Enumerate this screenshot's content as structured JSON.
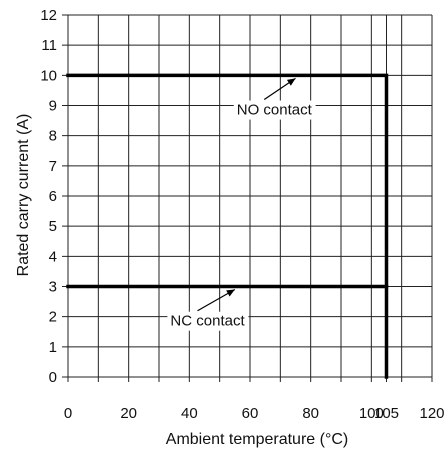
{
  "chart_data": {
    "type": "line",
    "title": "",
    "xlabel": "Ambient temperature (°C)",
    "ylabel": "Rated carry current (A)",
    "xlim": [
      0,
      120
    ],
    "ylim": [
      0,
      12
    ],
    "x_ticks": [
      0,
      20,
      40,
      60,
      80,
      100,
      105,
      120
    ],
    "y_ticks": [
      0,
      1,
      2,
      3,
      4,
      5,
      6,
      7,
      8,
      9,
      10,
      11,
      12
    ],
    "x_grid": [
      0,
      10,
      20,
      30,
      40,
      50,
      60,
      70,
      80,
      90,
      100,
      105,
      110,
      120
    ],
    "y_grid": [
      0,
      1,
      2,
      3,
      4,
      5,
      6,
      7,
      8,
      9,
      10,
      11,
      12
    ],
    "grid": true,
    "series": [
      {
        "name": "NO contact",
        "x": [
          0,
          105,
          105
        ],
        "y": [
          10,
          10,
          0
        ]
      },
      {
        "name": "NC contact",
        "x": [
          0,
          105
        ],
        "y": [
          3,
          3
        ]
      }
    ],
    "annotations": [
      {
        "text": "NO contact",
        "label_at": [
          68,
          8.7
        ],
        "arrow_to": [
          75,
          10
        ]
      },
      {
        "text": "NC contact",
        "label_at": [
          46,
          1.7
        ],
        "arrow_to": [
          55,
          3
        ]
      }
    ]
  }
}
